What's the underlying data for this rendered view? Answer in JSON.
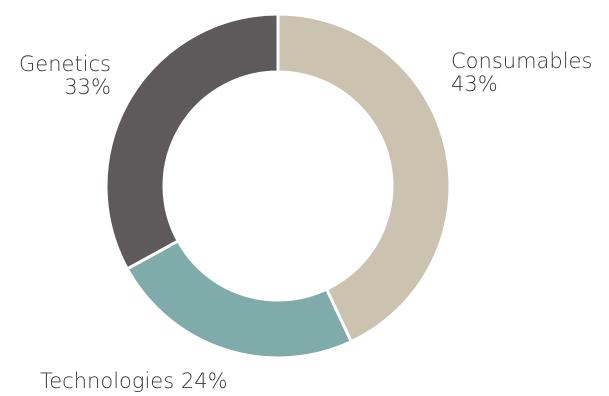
{
  "chart_data": {
    "type": "pie",
    "variant": "donut",
    "start_angle_deg": 0,
    "direction": "clockwise",
    "series": [
      {
        "name": "Consumables",
        "value": 43,
        "value_label": "43%",
        "color": "#cbc2b0"
      },
      {
        "name": "Technologies",
        "value": 24,
        "value_label": "24%",
        "color": "#80abab"
      },
      {
        "name": "Genetics",
        "value": 33,
        "value_label": "33%",
        "color": "#5e5a5c"
      }
    ],
    "separator_color": "#ffffff"
  }
}
